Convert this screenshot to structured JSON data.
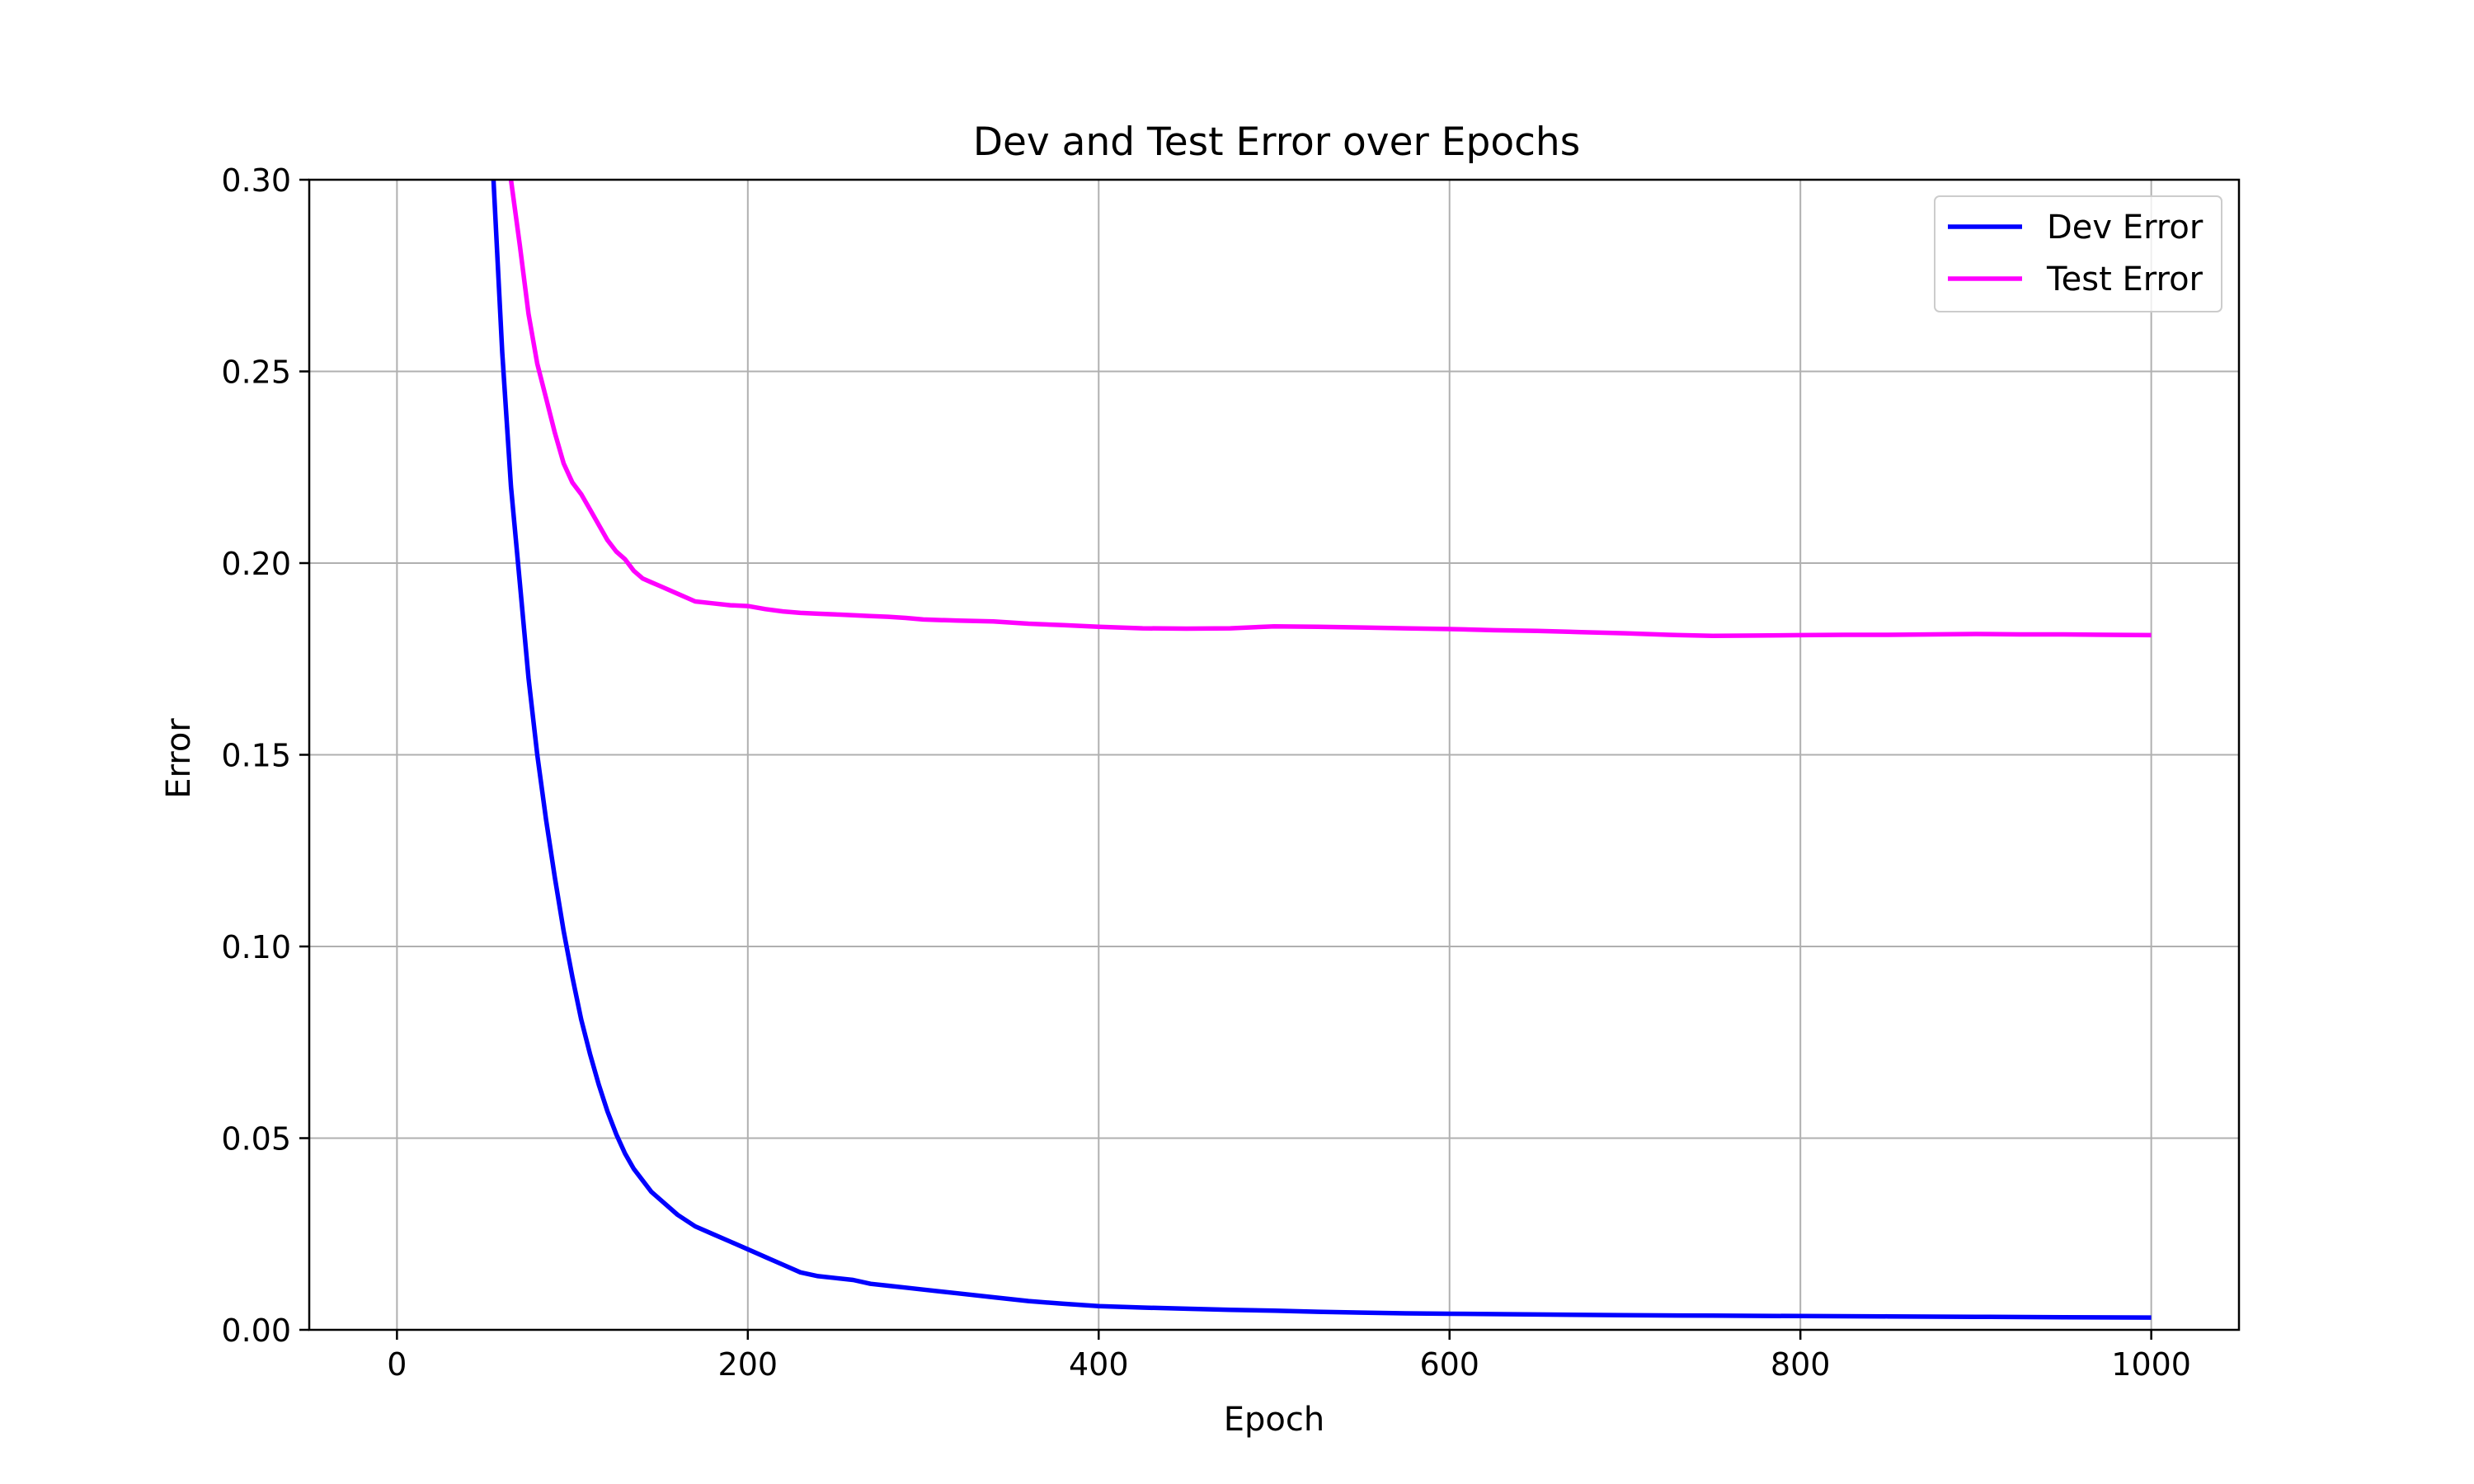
{
  "chart_data": {
    "type": "line",
    "title": "Dev and Test Error over Epochs",
    "xlabel": "Epoch",
    "ylabel": "Error",
    "xlim": [
      -50,
      1050
    ],
    "ylim": [
      0,
      0.3
    ],
    "xticks": [
      0,
      200,
      400,
      600,
      800,
      1000
    ],
    "yticks": [
      0.0,
      0.05,
      0.1,
      0.15,
      0.2,
      0.25,
      0.3
    ],
    "xtick_labels": [
      "0",
      "200",
      "400",
      "600",
      "800",
      "1000"
    ],
    "ytick_labels": [
      "0.00",
      "0.05",
      "0.10",
      "0.15",
      "0.20",
      "0.25",
      "0.30"
    ],
    "grid": true,
    "legend_position": "top-right",
    "series": [
      {
        "name": "Dev Error",
        "color": "#0000ff",
        "x": [
          50,
          55,
          60,
          65,
          70,
          75,
          80,
          85,
          90,
          95,
          100,
          105,
          110,
          115,
          120,
          125,
          130,
          135,
          140,
          145,
          150,
          160,
          170,
          180,
          190,
          200,
          210,
          220,
          230,
          240,
          250,
          260,
          270,
          280,
          290,
          300,
          320,
          340,
          360,
          380,
          400,
          425,
          450,
          475,
          500,
          525,
          550,
          575,
          600,
          650,
          700,
          750,
          800,
          850,
          900,
          950,
          1000
        ],
        "y": [
          0.4,
          0.3,
          0.255,
          0.22,
          0.195,
          0.17,
          0.15,
          0.133,
          0.118,
          0.104,
          0.092,
          0.081,
          0.072,
          0.064,
          0.057,
          0.051,
          0.046,
          0.042,
          0.039,
          0.036,
          0.034,
          0.03,
          0.027,
          0.025,
          0.023,
          0.021,
          0.019,
          0.017,
          0.015,
          0.014,
          0.0135,
          0.013,
          0.012,
          0.0115,
          0.011,
          0.0105,
          0.0095,
          0.0085,
          0.0075,
          0.0068,
          0.0062,
          0.0058,
          0.0055,
          0.0052,
          0.005,
          0.0047,
          0.0045,
          0.0043,
          0.0042,
          0.004,
          0.0038,
          0.0037,
          0.0036,
          0.0035,
          0.0034,
          0.0033,
          0.0032
        ]
      },
      {
        "name": "Test Error",
        "color": "#ff00ff",
        "x": [
          60,
          65,
          70,
          75,
          80,
          85,
          90,
          95,
          100,
          105,
          110,
          115,
          120,
          125,
          130,
          135,
          140,
          145,
          150,
          160,
          170,
          180,
          190,
          200,
          210,
          220,
          230,
          240,
          250,
          260,
          270,
          280,
          290,
          300,
          320,
          340,
          360,
          380,
          400,
          425,
          450,
          475,
          500,
          525,
          550,
          575,
          600,
          625,
          650,
          675,
          700,
          725,
          750,
          775,
          800,
          825,
          850,
          875,
          900,
          925,
          950,
          975,
          1000
        ],
        "y": [
          0.33,
          0.3,
          0.283,
          0.265,
          0.252,
          0.243,
          0.234,
          0.226,
          0.221,
          0.218,
          0.214,
          0.21,
          0.206,
          0.203,
          0.201,
          0.198,
          0.196,
          0.195,
          0.194,
          0.192,
          0.19,
          0.1895,
          0.189,
          0.1888,
          0.188,
          0.1874,
          0.187,
          0.1868,
          0.1866,
          0.1864,
          0.1862,
          0.186,
          0.1857,
          0.1853,
          0.185,
          0.1848,
          0.1842,
          0.1838,
          0.1834,
          0.183,
          0.1829,
          0.183,
          0.1835,
          0.1834,
          0.1832,
          0.183,
          0.1828,
          0.1825,
          0.1823,
          0.182,
          0.1817,
          0.1813,
          0.181,
          0.1811,
          0.1812,
          0.1813,
          0.1813,
          0.1814,
          0.1815,
          0.1814,
          0.1814,
          0.1813,
          0.1812
        ]
      }
    ]
  }
}
